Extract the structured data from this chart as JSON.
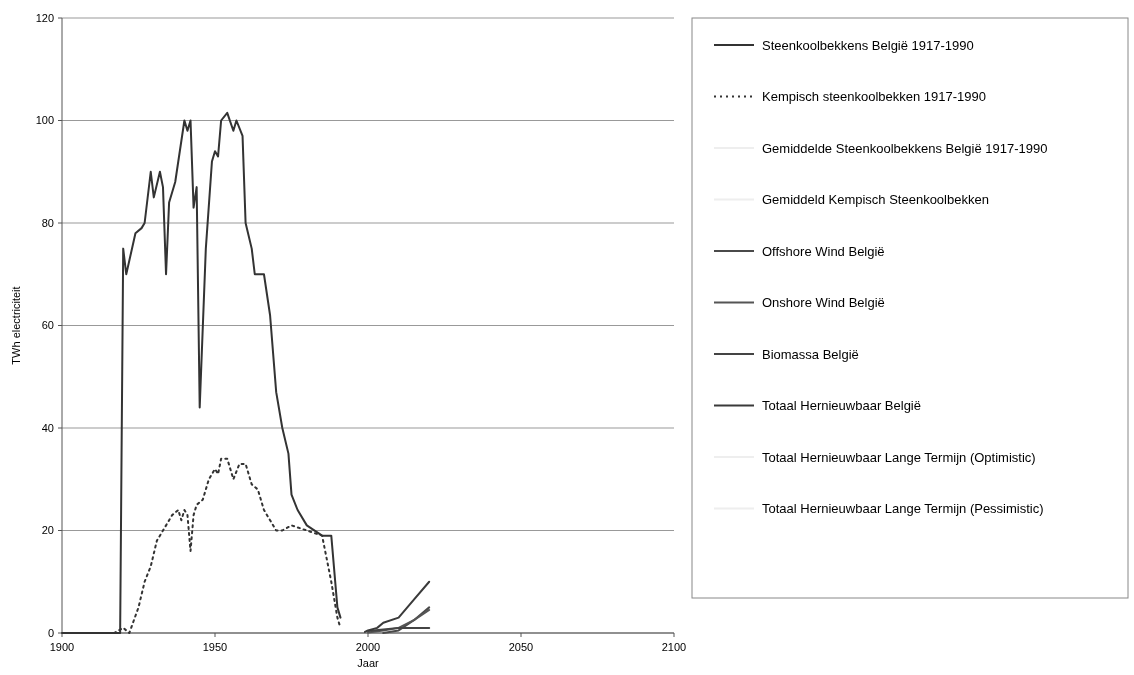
{
  "chart_data": {
    "type": "line",
    "xlabel": "Jaar",
    "ylabel": "TWh electriciteit",
    "xlim": [
      1900,
      2100
    ],
    "xticks": [
      1900,
      1950,
      2000,
      2050,
      2100
    ],
    "ylim": [
      0,
      120
    ],
    "yticks": [
      0,
      20,
      40,
      60,
      80,
      100,
      120
    ],
    "grid": "y",
    "legend": "right",
    "line_style": "solid",
    "marker": "none",
    "series": [
      {
        "name": "Steenkoolbekkens België 1917-1990",
        "color": "#333333",
        "x": [
          1900,
          1919,
          1920,
          1921,
          1924,
          1926,
          1927,
          1929,
          1930,
          1932,
          1933,
          1934,
          1935,
          1937,
          1938,
          1940,
          1941,
          1942,
          1943,
          1944,
          1945,
          1947,
          1949,
          1950,
          1951,
          1952,
          1954,
          1956,
          1957,
          1959,
          1960,
          1962,
          1963,
          1966,
          1968,
          1970,
          1972,
          1974,
          1975,
          1977,
          1980,
          1985,
          1988,
          1990,
          1991
        ],
        "values": [
          0,
          0,
          75,
          70,
          78,
          79,
          80,
          90,
          85,
          90,
          87,
          70,
          84,
          88,
          92,
          100,
          98,
          100,
          83,
          87,
          44,
          75,
          92,
          94,
          93,
          100,
          101.5,
          98,
          100,
          97,
          80,
          75,
          70,
          70,
          62,
          47,
          40,
          35,
          27,
          24,
          21,
          19,
          19,
          5,
          3
        ]
      },
      {
        "name": "Kempisch steenkoolbekken 1917-1990",
        "color": "#333333",
        "line_style": "dotted",
        "x": [
          1917,
          1920,
          1922,
          1925,
          1927,
          1929,
          1931,
          1934,
          1936,
          1938,
          1939,
          1940,
          1941,
          1942,
          1943,
          1944,
          1946,
          1948,
          1950,
          1951,
          1952,
          1954,
          1956,
          1958,
          1960,
          1962,
          1964,
          1966,
          1968,
          1970,
          1972,
          1975,
          1980,
          1985,
          1988,
          1990,
          1991
        ],
        "values": [
          0,
          1,
          0,
          5,
          10,
          13,
          18,
          21,
          23,
          24,
          22,
          24,
          23,
          16,
          23,
          25,
          26,
          30,
          32,
          31,
          34,
          34,
          30,
          33,
          33,
          29,
          28,
          24,
          22,
          20,
          20,
          21,
          20,
          19,
          10,
          3,
          1
        ]
      },
      {
        "name": "Gemiddelde Steenkoolbekkens België 1917-1990",
        "color": "#eeeeee"
      },
      {
        "name": "Gemiddeld Kempisch Steenkoolbekken",
        "color": "#eeeeee"
      },
      {
        "name": "Offshore Wind  België",
        "color": "#4a4a4a",
        "x": [
          2005,
          2010,
          2015,
          2020
        ],
        "values": [
          0,
          0.5,
          2.5,
          5
        ]
      },
      {
        "name": "Onshore Wind  België",
        "color": "#555555",
        "x": [
          2000,
          2005,
          2010,
          2015,
          2020
        ],
        "values": [
          0.1,
          0.5,
          1,
          2.5,
          4.5
        ]
      },
      {
        "name": "Biomassa België",
        "color": "#444444",
        "x": [
          2000,
          2005,
          2010,
          2015,
          2020
        ],
        "values": [
          0.4,
          0.7,
          1,
          1,
          1
        ]
      },
      {
        "name": "Totaal Hernieuwbaar België",
        "color": "#3a3a3a",
        "x": [
          1999,
          2000,
          2003,
          2005,
          2010,
          2015,
          2020
        ],
        "values": [
          0.2,
          0.5,
          1,
          2,
          3,
          6.5,
          10
        ]
      },
      {
        "name": "Totaal Hernieuwbaar Lange Termijn (Optimistic)",
        "color": "#eeeeee"
      },
      {
        "name": "Totaal Hernieuwbaar Lange Termijn (Pessimistic)",
        "color": "#eeeeee"
      }
    ]
  }
}
